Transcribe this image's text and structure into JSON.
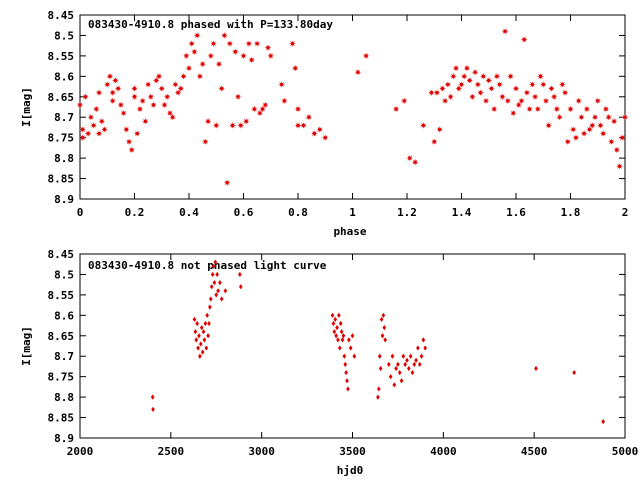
{
  "chart_data": [
    {
      "type": "scatter",
      "title": "083430-4910.8 phased with P=133.80day",
      "xlabel": "phase",
      "ylabel": "I[mag]",
      "xlim": [
        0,
        2
      ],
      "ylim": [
        8.45,
        8.9
      ],
      "y_inverted": true,
      "grid": false,
      "xticks": [
        "0",
        "0.2",
        "0.4",
        "0.6",
        "0.8",
        "1",
        "1.2",
        "1.4",
        "1.6",
        "1.8",
        "2"
      ],
      "yticks": [
        "8.45",
        "8.5",
        "8.55",
        "8.6",
        "8.65",
        "8.7",
        "8.75",
        "8.8",
        "8.85",
        "8.9"
      ],
      "marker": "filled-star",
      "color": "#e00000",
      "points": [
        [
          0.0,
          8.67
        ],
        [
          0.01,
          8.73
        ],
        [
          0.01,
          8.75
        ],
        [
          0.02,
          8.65
        ],
        [
          0.03,
          8.74
        ],
        [
          0.04,
          8.7
        ],
        [
          0.05,
          8.72
        ],
        [
          0.06,
          8.68
        ],
        [
          0.07,
          8.64
        ],
        [
          0.07,
          8.74
        ],
        [
          0.08,
          8.71
        ],
        [
          0.09,
          8.73
        ],
        [
          0.1,
          8.62
        ],
        [
          0.11,
          8.6
        ],
        [
          0.12,
          8.64
        ],
        [
          0.12,
          8.66
        ],
        [
          0.13,
          8.61
        ],
        [
          0.14,
          8.63
        ],
        [
          0.15,
          8.67
        ],
        [
          0.16,
          8.69
        ],
        [
          0.17,
          8.73
        ],
        [
          0.18,
          8.76
        ],
        [
          0.19,
          8.78
        ],
        [
          0.2,
          8.65
        ],
        [
          0.2,
          8.63
        ],
        [
          0.21,
          8.74
        ],
        [
          0.22,
          8.68
        ],
        [
          0.23,
          8.66
        ],
        [
          0.24,
          8.71
        ],
        [
          0.25,
          8.62
        ],
        [
          0.26,
          8.65
        ],
        [
          0.27,
          8.67
        ],
        [
          0.28,
          8.61
        ],
        [
          0.29,
          8.6
        ],
        [
          0.3,
          8.63
        ],
        [
          0.31,
          8.67
        ],
        [
          0.32,
          8.65
        ],
        [
          0.33,
          8.69
        ],
        [
          0.34,
          8.7
        ],
        [
          0.35,
          8.62
        ],
        [
          0.36,
          8.64
        ],
        [
          0.37,
          8.63
        ],
        [
          0.38,
          8.6
        ],
        [
          0.39,
          8.55
        ],
        [
          0.4,
          8.58
        ],
        [
          0.41,
          8.52
        ],
        [
          0.42,
          8.54
        ],
        [
          0.43,
          8.5
        ],
        [
          0.44,
          8.6
        ],
        [
          0.45,
          8.57
        ],
        [
          0.46,
          8.76
        ],
        [
          0.47,
          8.71
        ],
        [
          0.48,
          8.55
        ],
        [
          0.49,
          8.52
        ],
        [
          0.5,
          8.72
        ],
        [
          0.51,
          8.57
        ],
        [
          0.52,
          8.63
        ],
        [
          0.53,
          8.5
        ],
        [
          0.54,
          8.86
        ],
        [
          0.55,
          8.52
        ],
        [
          0.56,
          8.72
        ],
        [
          0.57,
          8.54
        ],
        [
          0.58,
          8.65
        ],
        [
          0.59,
          8.72
        ],
        [
          0.6,
          8.55
        ],
        [
          0.61,
          8.71
        ],
        [
          0.62,
          8.52
        ],
        [
          0.63,
          8.56
        ],
        [
          0.64,
          8.68
        ],
        [
          0.65,
          8.52
        ],
        [
          0.66,
          8.69
        ],
        [
          0.67,
          8.68
        ],
        [
          0.68,
          8.67
        ],
        [
          0.69,
          8.53
        ],
        [
          0.7,
          8.55
        ],
        [
          0.74,
          8.62
        ],
        [
          0.75,
          8.66
        ],
        [
          0.78,
          8.52
        ],
        [
          0.79,
          8.58
        ],
        [
          0.8,
          8.68
        ],
        [
          0.8,
          8.72
        ],
        [
          0.82,
          8.72
        ],
        [
          0.84,
          8.7
        ],
        [
          0.86,
          8.74
        ],
        [
          0.88,
          8.73
        ],
        [
          0.9,
          8.75
        ],
        [
          1.02,
          8.59
        ],
        [
          1.05,
          8.55
        ],
        [
          1.16,
          8.68
        ],
        [
          1.19,
          8.66
        ],
        [
          1.21,
          8.8
        ],
        [
          1.23,
          8.81
        ],
        [
          1.26,
          8.72
        ],
        [
          1.29,
          8.64
        ],
        [
          1.3,
          8.76
        ],
        [
          1.31,
          8.64
        ],
        [
          1.32,
          8.73
        ],
        [
          1.33,
          8.63
        ],
        [
          1.34,
          8.66
        ],
        [
          1.35,
          8.62
        ],
        [
          1.36,
          8.65
        ],
        [
          1.37,
          8.6
        ],
        [
          1.38,
          8.58
        ],
        [
          1.39,
          8.63
        ],
        [
          1.4,
          8.62
        ],
        [
          1.41,
          8.6
        ],
        [
          1.42,
          8.58
        ],
        [
          1.43,
          8.61
        ],
        [
          1.44,
          8.65
        ],
        [
          1.45,
          8.59
        ],
        [
          1.46,
          8.62
        ],
        [
          1.47,
          8.64
        ],
        [
          1.48,
          8.6
        ],
        [
          1.49,
          8.66
        ],
        [
          1.5,
          8.61
        ],
        [
          1.51,
          8.63
        ],
        [
          1.52,
          8.68
        ],
        [
          1.53,
          8.6
        ],
        [
          1.54,
          8.62
        ],
        [
          1.55,
          8.65
        ],
        [
          1.56,
          8.49
        ],
        [
          1.57,
          8.66
        ],
        [
          1.58,
          8.6
        ],
        [
          1.59,
          8.69
        ],
        [
          1.6,
          8.63
        ],
        [
          1.61,
          8.67
        ],
        [
          1.62,
          8.66
        ],
        [
          1.63,
          8.51
        ],
        [
          1.64,
          8.64
        ],
        [
          1.65,
          8.68
        ],
        [
          1.66,
          8.62
        ],
        [
          1.67,
          8.65
        ],
        [
          1.68,
          8.68
        ],
        [
          1.69,
          8.6
        ],
        [
          1.7,
          8.62
        ],
        [
          1.71,
          8.66
        ],
        [
          1.72,
          8.72
        ],
        [
          1.73,
          8.63
        ],
        [
          1.74,
          8.65
        ],
        [
          1.75,
          8.68
        ],
        [
          1.76,
          8.7
        ],
        [
          1.77,
          8.62
        ],
        [
          1.78,
          8.64
        ],
        [
          1.79,
          8.76
        ],
        [
          1.8,
          8.68
        ],
        [
          1.81,
          8.73
        ],
        [
          1.82,
          8.75
        ],
        [
          1.83,
          8.66
        ],
        [
          1.84,
          8.7
        ],
        [
          1.85,
          8.74
        ],
        [
          1.86,
          8.68
        ],
        [
          1.87,
          8.73
        ],
        [
          1.88,
          8.72
        ],
        [
          1.89,
          8.7
        ],
        [
          1.9,
          8.66
        ],
        [
          1.91,
          8.72
        ],
        [
          1.92,
          8.74
        ],
        [
          1.93,
          8.68
        ],
        [
          1.94,
          8.7
        ],
        [
          1.95,
          8.76
        ],
        [
          1.96,
          8.71
        ],
        [
          1.97,
          8.78
        ],
        [
          1.98,
          8.82
        ],
        [
          1.99,
          8.75
        ],
        [
          2.0,
          8.7
        ]
      ]
    },
    {
      "type": "scatter",
      "title": "083430-4910.8 not phased light curve",
      "xlabel": "hjd0",
      "ylabel": "I[mag]",
      "xlim": [
        2000,
        5000
      ],
      "ylim": [
        8.45,
        8.9
      ],
      "y_inverted": true,
      "grid": false,
      "xticks": [
        "2000",
        "2500",
        "3000",
        "3500",
        "4000",
        "4500",
        "5000"
      ],
      "yticks": [
        "8.45",
        "8.5",
        "8.55",
        "8.6",
        "8.65",
        "8.7",
        "8.75",
        "8.8",
        "8.85",
        "8.9"
      ],
      "marker": "filled-diamond",
      "color": "#e00000",
      "points": [
        [
          2400,
          8.8
        ],
        [
          2402,
          8.83
        ],
        [
          2630,
          8.61
        ],
        [
          2635,
          8.64
        ],
        [
          2640,
          8.66
        ],
        [
          2645,
          8.62
        ],
        [
          2650,
          8.68
        ],
        [
          2655,
          8.65
        ],
        [
          2660,
          8.7
        ],
        [
          2665,
          8.67
        ],
        [
          2670,
          8.63
        ],
        [
          2675,
          8.69
        ],
        [
          2680,
          8.64
        ],
        [
          2685,
          8.66
        ],
        [
          2690,
          8.62
        ],
        [
          2695,
          8.68
        ],
        [
          2700,
          8.6
        ],
        [
          2705,
          8.65
        ],
        [
          2710,
          8.62
        ],
        [
          2715,
          8.58
        ],
        [
          2720,
          8.56
        ],
        [
          2725,
          8.53
        ],
        [
          2730,
          8.5
        ],
        [
          2735,
          8.48
        ],
        [
          2740,
          8.52
        ],
        [
          2745,
          8.47
        ],
        [
          2750,
          8.55
        ],
        [
          2755,
          8.5
        ],
        [
          2760,
          8.54
        ],
        [
          2770,
          8.52
        ],
        [
          2780,
          8.56
        ],
        [
          2800,
          8.54
        ],
        [
          2880,
          8.5
        ],
        [
          2885,
          8.53
        ],
        [
          3390,
          8.6
        ],
        [
          3395,
          8.62
        ],
        [
          3400,
          8.64
        ],
        [
          3405,
          8.61
        ],
        [
          3410,
          8.65
        ],
        [
          3415,
          8.63
        ],
        [
          3420,
          8.66
        ],
        [
          3425,
          8.6
        ],
        [
          3430,
          8.68
        ],
        [
          3435,
          8.62
        ],
        [
          3440,
          8.64
        ],
        [
          3445,
          8.66
        ],
        [
          3450,
          8.65
        ],
        [
          3455,
          8.7
        ],
        [
          3460,
          8.72
        ],
        [
          3465,
          8.74
        ],
        [
          3470,
          8.76
        ],
        [
          3475,
          8.78
        ],
        [
          3480,
          8.66
        ],
        [
          3490,
          8.68
        ],
        [
          3500,
          8.65
        ],
        [
          3510,
          8.7
        ],
        [
          3640,
          8.8
        ],
        [
          3645,
          8.78
        ],
        [
          3650,
          8.7
        ],
        [
          3655,
          8.73
        ],
        [
          3660,
          8.61
        ],
        [
          3665,
          8.65
        ],
        [
          3670,
          8.6
        ],
        [
          3675,
          8.63
        ],
        [
          3680,
          8.66
        ],
        [
          3700,
          8.72
        ],
        [
          3710,
          8.75
        ],
        [
          3720,
          8.7
        ],
        [
          3730,
          8.77
        ],
        [
          3740,
          8.73
        ],
        [
          3750,
          8.72
        ],
        [
          3760,
          8.74
        ],
        [
          3770,
          8.76
        ],
        [
          3780,
          8.7
        ],
        [
          3790,
          8.72
        ],
        [
          3800,
          8.71
        ],
        [
          3810,
          8.73
        ],
        [
          3820,
          8.7
        ],
        [
          3830,
          8.74
        ],
        [
          3840,
          8.72
        ],
        [
          3850,
          8.71
        ],
        [
          3860,
          8.68
        ],
        [
          3870,
          8.72
        ],
        [
          3880,
          8.7
        ],
        [
          3890,
          8.66
        ],
        [
          3900,
          8.68
        ],
        [
          4510,
          8.73
        ],
        [
          4720,
          8.74
        ],
        [
          4880,
          8.86
        ]
      ]
    }
  ]
}
